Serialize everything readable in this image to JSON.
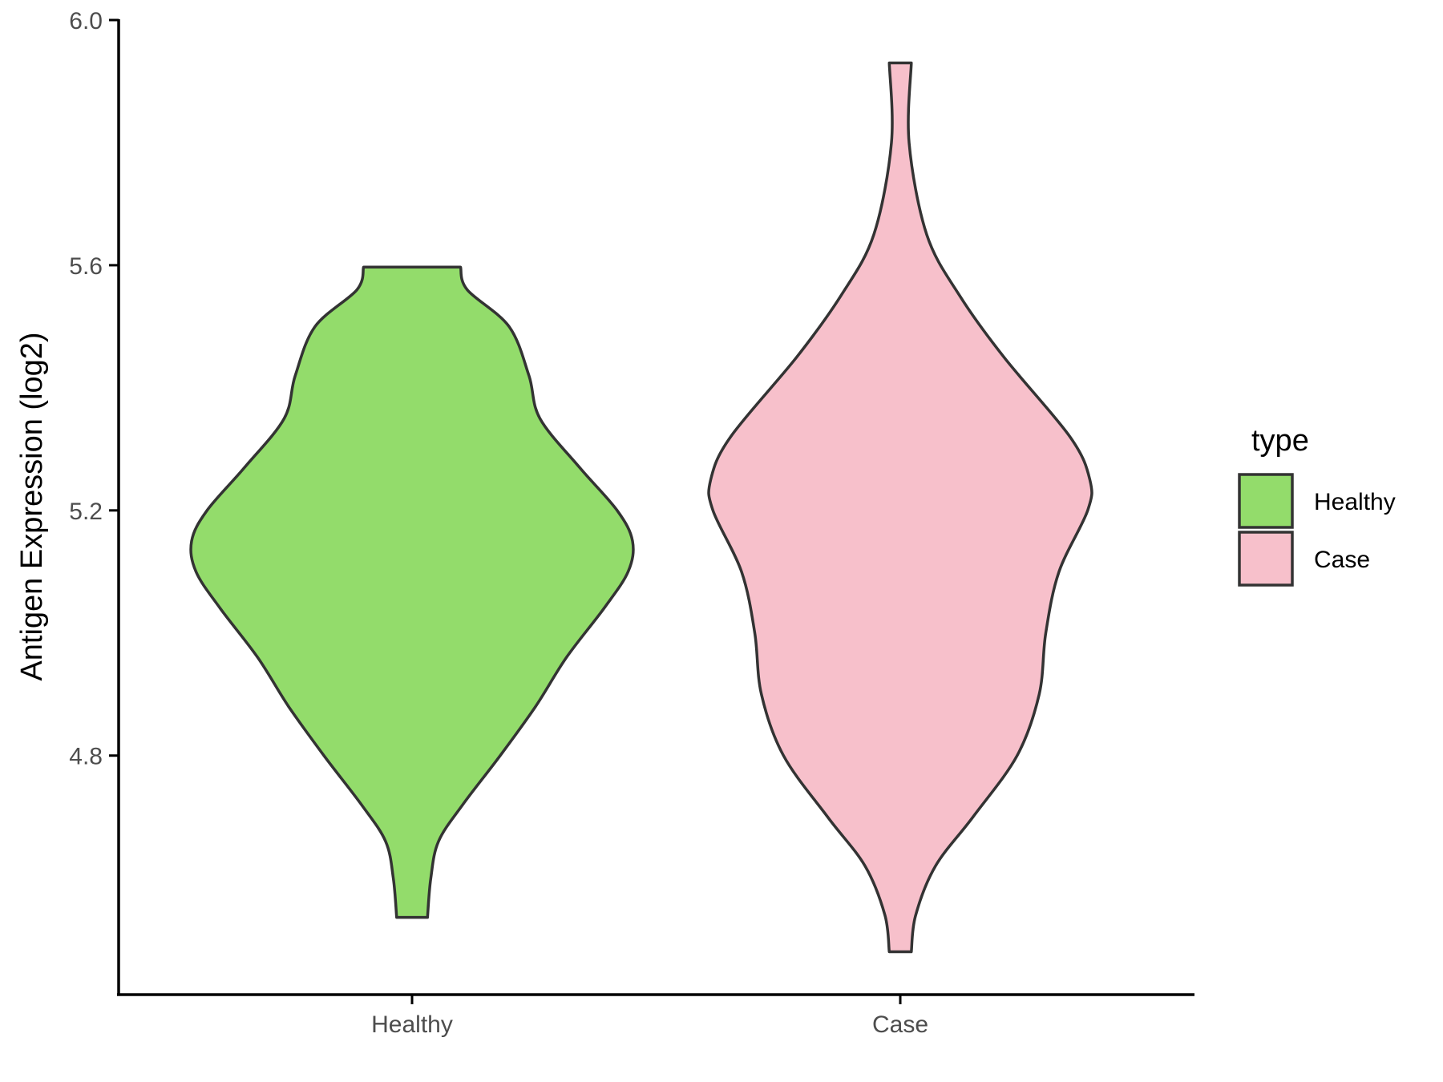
{
  "chart_data": {
    "type": "violin",
    "ylabel": "Antigen Expression (log2)",
    "xlabel": "",
    "ylim": [
      4.41,
      6.0
    ],
    "yticks": [
      4.8,
      5.2,
      5.6,
      6.0
    ],
    "ytick_labels": [
      "4.8",
      "5.2",
      "5.6",
      "6.0"
    ],
    "categories": [
      "Healthy",
      "Case"
    ],
    "grid": false,
    "legend": {
      "title": "type",
      "placement": "right",
      "entries": [
        {
          "label": "Healthy",
          "color": "#93dc6b"
        },
        {
          "label": "Case",
          "color": "#f7c0cb"
        }
      ]
    },
    "series": [
      {
        "category": "Healthy",
        "color": "#93dc6b",
        "min": 4.536,
        "max": 5.597,
        "profile": [
          [
            4.536,
            0.07
          ],
          [
            4.6,
            0.085
          ],
          [
            4.66,
            0.12
          ],
          [
            4.72,
            0.23
          ],
          [
            4.8,
            0.4
          ],
          [
            4.88,
            0.56
          ],
          [
            4.96,
            0.7
          ],
          [
            5.04,
            0.87
          ],
          [
            5.1,
            0.98
          ],
          [
            5.15,
            1.0
          ],
          [
            5.2,
            0.93
          ],
          [
            5.27,
            0.76
          ],
          [
            5.35,
            0.58
          ],
          [
            5.42,
            0.53
          ],
          [
            5.5,
            0.44
          ],
          [
            5.56,
            0.25
          ],
          [
            5.597,
            0.22
          ]
        ]
      },
      {
        "category": "Case",
        "color": "#f7c0cb",
        "min": 4.48,
        "max": 5.93,
        "profile": [
          [
            4.48,
            0.05
          ],
          [
            4.54,
            0.07
          ],
          [
            4.62,
            0.16
          ],
          [
            4.7,
            0.33
          ],
          [
            4.8,
            0.53
          ],
          [
            4.9,
            0.63
          ],
          [
            5.0,
            0.66
          ],
          [
            5.1,
            0.72
          ],
          [
            5.2,
            0.85
          ],
          [
            5.25,
            0.86
          ],
          [
            5.32,
            0.77
          ],
          [
            5.45,
            0.47
          ],
          [
            5.55,
            0.27
          ],
          [
            5.65,
            0.12
          ],
          [
            5.8,
            0.04
          ],
          [
            5.93,
            0.05
          ]
        ]
      }
    ]
  }
}
